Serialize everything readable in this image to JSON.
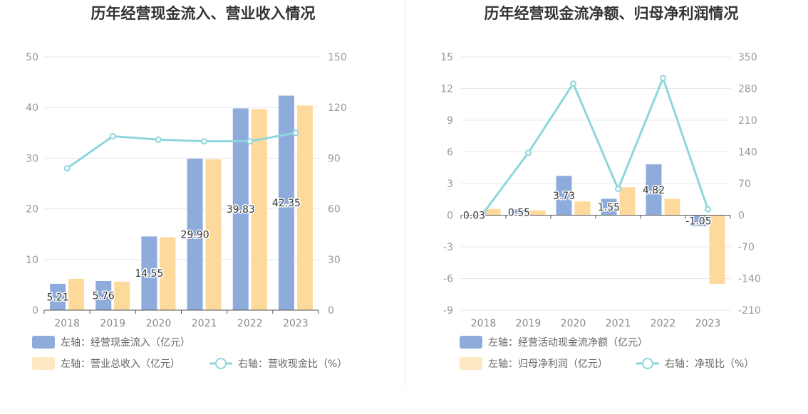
{
  "chart_data": [
    {
      "type": "bar",
      "title": "历年经营现金流入、营业收入情况",
      "categories": [
        "2018",
        "2019",
        "2020",
        "2021",
        "2022",
        "2023"
      ],
      "left_axis": {
        "ylim": [
          0,
          50
        ],
        "ticks": [
          "0",
          "10",
          "20",
          "30",
          "40",
          "50"
        ]
      },
      "right_axis": {
        "ylim": [
          0,
          150
        ],
        "ticks": [
          "0",
          "30",
          "60",
          "90",
          "120",
          "150"
        ]
      },
      "series": [
        {
          "name": "左轴：经营现金流入（亿元）",
          "type": "bar",
          "axis": "left",
          "color": "#8eacdb",
          "values": [
            5.21,
            5.76,
            14.55,
            29.9,
            39.83,
            42.35
          ],
          "labels": [
            "5.21",
            "5.76",
            "14.55",
            "29.90",
            "39.83",
            "42.35"
          ]
        },
        {
          "name": "左轴：营业总收入（亿元）",
          "type": "bar",
          "axis": "left",
          "color": "#fdd99b",
          "values": [
            6.2,
            5.6,
            14.4,
            29.8,
            39.7,
            40.4
          ]
        },
        {
          "name": "右轴：营收现金比（%）",
          "type": "line",
          "axis": "right",
          "color": "#8ed6dc",
          "values": [
            84.0,
            103.0,
            101.0,
            100.0,
            100.0,
            105.0
          ]
        }
      ]
    },
    {
      "type": "bar",
      "title": "历年经营现金流净额、归母净利润情况",
      "categories": [
        "2018",
        "2019",
        "2020",
        "2021",
        "2022",
        "2023"
      ],
      "left_axis": {
        "ylim": [
          -9,
          15
        ],
        "ticks": [
          "-9",
          "-6",
          "-3",
          "0",
          "3",
          "6",
          "9",
          "12",
          "15"
        ]
      },
      "right_axis": {
        "ylim": [
          -210,
          350
        ],
        "ticks": [
          "-210",
          "-140",
          "-70",
          "0",
          "70",
          "140",
          "210",
          "280",
          "350"
        ]
      },
      "series": [
        {
          "name": "左轴：经营活动现金流净额（亿元）",
          "type": "bar",
          "axis": "left",
          "color": "#8eacdb",
          "values": [
            0.03,
            0.55,
            3.73,
            1.55,
            4.82,
            -1.05
          ],
          "labels": [
            "0.03",
            "0.55",
            "3.73",
            "1.55",
            "4.82",
            "-1.05"
          ]
        },
        {
          "name": "左轴：归母净利润（亿元）",
          "type": "bar",
          "axis": "left",
          "color": "#fdd99b",
          "values": [
            0.6,
            0.45,
            1.3,
            2.65,
            1.55,
            -6.5
          ]
        },
        {
          "name": "右轴：净现比（%）",
          "type": "line",
          "axis": "right",
          "color": "#8ed6dc",
          "values": [
            5,
            138,
            291,
            58,
            303,
            13
          ]
        }
      ]
    }
  ]
}
